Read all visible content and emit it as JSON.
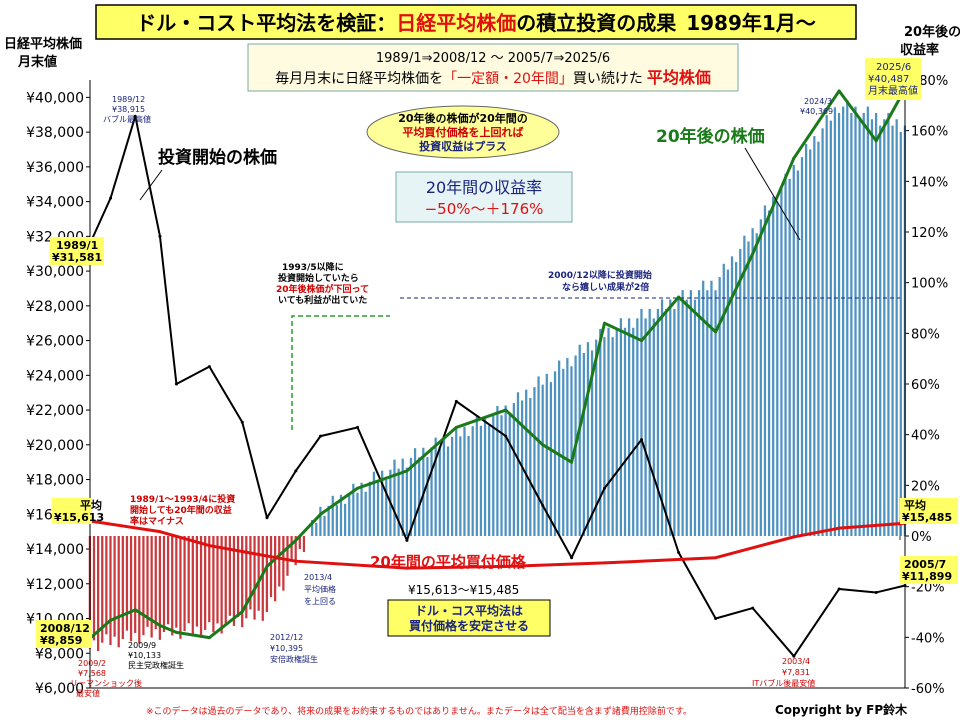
{
  "header": {
    "title_part1": "ドル・コスト平均法を検証：",
    "title_part2": "日経平均株価",
    "title_part3": "の積立投資の成果",
    "title_part4": "1989年1月〜",
    "subtitle_line1": "1989/1⇒2008/12 〜 2005/7⇒2025/6",
    "subtitle_line2_a": "毎月月末に日経平均株価を",
    "subtitle_line2_b": "「一定額・20年間」",
    "subtitle_line2_c": "買い続けた",
    "subtitle_line2_d": "平均株価"
  },
  "axes": {
    "left_title_1": "日経平均株価",
    "left_title_2": "月末値",
    "right_title_1": "20年後の",
    "right_title_2": "収益率",
    "left_ticks": [
      "¥40,000",
      "¥38,000",
      "¥36,000",
      "¥34,000",
      "¥32,000",
      "¥30,000",
      "¥28,000",
      "¥26,000",
      "¥24,000",
      "¥22,000",
      "¥20,000",
      "¥18,000",
      "¥16,000",
      "¥14,000",
      "¥12,000",
      "¥10,000",
      "¥8,000",
      "¥6,000"
    ],
    "right_ticks": [
      "180%",
      "160%",
      "140%",
      "120%",
      "100%",
      "80%",
      "60%",
      "40%",
      "20%",
      "0%",
      "-20%",
      "-40%",
      "-60%"
    ]
  },
  "annotations": {
    "bubble_1": "20年後の株価が20年間の",
    "bubble_2": "平均買付価格を上回れば",
    "bubble_3": "投資収益はプラス",
    "range_1": "20年間の収益率",
    "range_2": "−50%〜＋176%",
    "start_price_label": "投資開始の株価",
    "future_price_label": "20年後の株価",
    "avg_cost_label": "20年間の平均買付価格",
    "dca_1": "ドル・コス平均法は",
    "dca_2": "買付価格を安定させる",
    "avg_range": "¥15,613〜¥15,485",
    "note_1993_1": "1993/5以降に",
    "note_1993_2": "投資開始していたら",
    "note_1993_3": "20年後株価が下回って",
    "note_1993_4": "いても利益が出ていた",
    "note_1989_1": "1989/1〜1993/4に投資",
    "note_1989_2": "開始しても20年間の収益",
    "note_1989_3": "率はマイナス",
    "note_2000_1": "2000/12以降に投資開始",
    "note_2000_2": "なら嬉しい成果が2倍",
    "bubble_peak_1": "1989/12",
    "bubble_peak_2": "¥38,915",
    "bubble_peak_3": "バブル最高値",
    "start_1": "1989/1",
    "start_2": "¥31,581",
    "avg_left_1": "平均",
    "avg_left_2": "¥15,613",
    "avg_right_1": "平均",
    "avg_right_2": "¥15,485",
    "end2008_1": "2008/12",
    "end2008_2": "¥8,859",
    "end2005_1": "2005/7",
    "end2005_2": "¥11,899",
    "peak2025_1": "2025/6",
    "peak2025_2": "¥40,487",
    "peak2025_3": "月末最高値",
    "peak2024_1": "2024/3",
    "peak2024_2": "¥40,369",
    "low2009_1": "2009/2",
    "low2009_2": "¥7,568",
    "low2009_3": "リーマンショック後",
    "low2009_4": "最安値",
    "dem_1": "2009/9",
    "dem_2": "¥10,133",
    "dem_3": "民主党政権誕生",
    "abe_1": "2012/12",
    "abe_2": "¥10,395",
    "abe_3": "安倍政権誕生",
    "cross_1": "2013/4",
    "cross_2": "平均価格",
    "cross_3": "を上回る",
    "it_1": "2003/4",
    "it_2": "¥7,831",
    "it_3": "ITバブル後最安値"
  },
  "footer": {
    "disclaimer": "※このデータは過去のデータであり、将来の成果をお約束するものではありません。またデータは全て配当を含まず諸費用控除前です。",
    "copyright": "Copyright by FP鈴木"
  },
  "colors": {
    "start_price": "#000000",
    "future_price": "#1a7a1a",
    "avg_cost": "#e01010",
    "bar_positive": "#2f7fb5",
    "bar_negative": "#c0161b",
    "accent_yellow": "#ffff66",
    "title_red": "#e01010"
  },
  "chart_data": {
    "type": "line",
    "x_range": [
      "1989/1",
      "2005/7"
    ],
    "y_left_range": [
      6000,
      41000
    ],
    "y_right_range": [
      -60,
      180
    ],
    "series": [
      {
        "name": "投資開始の株価",
        "axis": "left",
        "x": [
          "1989/1",
          "1989/6",
          "1989/12",
          "1990/6",
          "1990/10",
          "1991/6",
          "1992/2",
          "1992/8",
          "1993/3",
          "1993/9",
          "1994/6",
          "1995/6",
          "1996/6",
          "1997/6",
          "1998/3",
          "1998/10",
          "1999/6",
          "2000/3",
          "2000/12",
          "2001/9",
          "2002/6",
          "2003/4",
          "2004/3",
          "2004/12",
          "2005/7"
        ],
        "values": [
          31581,
          34200,
          38915,
          32000,
          23500,
          24500,
          21300,
          15800,
          18500,
          20500,
          21000,
          14500,
          22500,
          20500,
          16500,
          13500,
          17500,
          20300,
          13800,
          10000,
          10600,
          7831,
          11700,
          11500,
          11899
        ]
      },
      {
        "name": "20年後の株価",
        "axis": "left",
        "x": [
          "1989/1",
          "1989/6",
          "1989/12",
          "1990/6",
          "1990/10",
          "1991/6",
          "1992/2",
          "1992/8",
          "1993/3",
          "1993/9",
          "1994/6",
          "1995/6",
          "1996/6",
          "1997/6",
          "1998/3",
          "1998/10",
          "1999/6",
          "2000/3",
          "2000/12",
          "2001/9",
          "2002/6",
          "2003/4",
          "2004/3",
          "2004/12",
          "2005/7"
        ],
        "values": [
          8859,
          9900,
          10500,
          9600,
          9200,
          8900,
          10395,
          13000,
          14500,
          16000,
          17500,
          18500,
          21000,
          22000,
          20000,
          19000,
          27000,
          26000,
          28500,
          26500,
          31000,
          36500,
          40369,
          37500,
          40487
        ]
      },
      {
        "name": "20年間の平均買付価格",
        "axis": "left",
        "x": [
          "1989/1",
          "1990/6",
          "1991/6",
          "1993/3",
          "1995/6",
          "1997/6",
          "1999/6",
          "2001/9",
          "2003/4",
          "2004/3",
          "2005/7"
        ],
        "values": [
          15613,
          15000,
          14200,
          13300,
          12900,
          13000,
          13200,
          13500,
          14700,
          15200,
          15485
        ]
      },
      {
        "name": "20年後の収益率",
        "axis": "right",
        "type": "bar",
        "x": [
          "1989/1",
          "1990/6",
          "1991/6",
          "1992/8",
          "1993/3",
          "1993/9",
          "1995/6",
          "1997/6",
          "1999/6",
          "2001/9",
          "2002/6",
          "2003/4",
          "2004/3",
          "2005/7"
        ],
        "values": [
          -43,
          -38,
          -37,
          -30,
          -10,
          10,
          30,
          50,
          80,
          100,
          120,
          145,
          170,
          162
        ]
      }
    ]
  }
}
